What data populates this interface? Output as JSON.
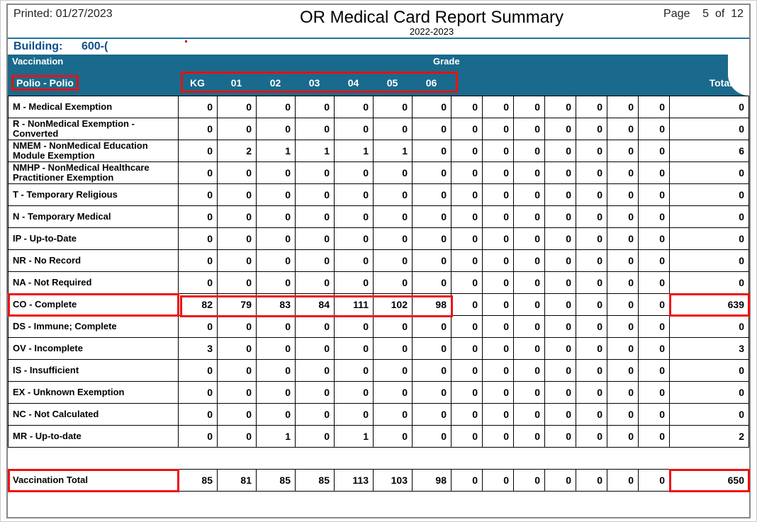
{
  "printed_label": "Printed:",
  "printed_date": "01/27/2023",
  "title": "OR Medical Card Report Summary",
  "subtitle": "2022-2023",
  "page_label": "Page",
  "page_num": "5",
  "page_of": "of",
  "page_total": "12",
  "building_label": "Building:",
  "building_value": "600-(",
  "vaccination_label": "Vaccination",
  "grade_label": "Grade",
  "vaccination_name": "Polio - Polio",
  "total_label": "Total",
  "grade_headers": [
    "KG",
    "01",
    "02",
    "03",
    "04",
    "05",
    "06",
    "",
    "",
    "",
    "",
    "",
    "",
    ""
  ],
  "rows": [
    {
      "label": "M - Medical Exemption",
      "vals": [
        0,
        0,
        0,
        0,
        0,
        0,
        0,
        0,
        0,
        0,
        0,
        0,
        0,
        0
      ],
      "total": 0
    },
    {
      "label": "R - NonMedical Exemption - Converted",
      "vals": [
        0,
        0,
        0,
        0,
        0,
        0,
        0,
        0,
        0,
        0,
        0,
        0,
        0,
        0
      ],
      "total": 0
    },
    {
      "label": "NMEM - NonMedical Education Module Exemption",
      "vals": [
        0,
        2,
        1,
        1,
        1,
        1,
        0,
        0,
        0,
        0,
        0,
        0,
        0,
        0
      ],
      "total": 6
    },
    {
      "label": "NMHP - NonMedical Healthcare Practitioner Exemption",
      "vals": [
        0,
        0,
        0,
        0,
        0,
        0,
        0,
        0,
        0,
        0,
        0,
        0,
        0,
        0
      ],
      "total": 0
    },
    {
      "label": "T - Temporary Religious",
      "vals": [
        0,
        0,
        0,
        0,
        0,
        0,
        0,
        0,
        0,
        0,
        0,
        0,
        0,
        0
      ],
      "total": 0
    },
    {
      "label": "N - Temporary Medical",
      "vals": [
        0,
        0,
        0,
        0,
        0,
        0,
        0,
        0,
        0,
        0,
        0,
        0,
        0,
        0
      ],
      "total": 0
    },
    {
      "label": "IP - Up-to-Date",
      "vals": [
        0,
        0,
        0,
        0,
        0,
        0,
        0,
        0,
        0,
        0,
        0,
        0,
        0,
        0
      ],
      "total": 0
    },
    {
      "label": "NR - No Record",
      "vals": [
        0,
        0,
        0,
        0,
        0,
        0,
        0,
        0,
        0,
        0,
        0,
        0,
        0,
        0
      ],
      "total": 0
    },
    {
      "label": "NA - Not Required",
      "vals": [
        0,
        0,
        0,
        0,
        0,
        0,
        0,
        0,
        0,
        0,
        0,
        0,
        0,
        0
      ],
      "total": 0
    },
    {
      "label": "CO - Complete",
      "vals": [
        82,
        79,
        83,
        84,
        111,
        102,
        98,
        0,
        0,
        0,
        0,
        0,
        0,
        0
      ],
      "total": 639,
      "hl": true
    },
    {
      "label": "DS - Immune; Complete",
      "vals": [
        0,
        0,
        0,
        0,
        0,
        0,
        0,
        0,
        0,
        0,
        0,
        0,
        0,
        0
      ],
      "total": 0
    },
    {
      "label": "OV - Incomplete",
      "vals": [
        3,
        0,
        0,
        0,
        0,
        0,
        0,
        0,
        0,
        0,
        0,
        0,
        0,
        0
      ],
      "total": 3
    },
    {
      "label": "IS - Insufficient",
      "vals": [
        0,
        0,
        0,
        0,
        0,
        0,
        0,
        0,
        0,
        0,
        0,
        0,
        0,
        0
      ],
      "total": 0
    },
    {
      "label": "EX - Unknown Exemption",
      "vals": [
        0,
        0,
        0,
        0,
        0,
        0,
        0,
        0,
        0,
        0,
        0,
        0,
        0,
        0
      ],
      "total": 0
    },
    {
      "label": "NC - Not Calculated",
      "vals": [
        0,
        0,
        0,
        0,
        0,
        0,
        0,
        0,
        0,
        0,
        0,
        0,
        0,
        0
      ],
      "total": 0
    },
    {
      "label": "MR - Up-to-date",
      "vals": [
        0,
        0,
        1,
        0,
        1,
        0,
        0,
        0,
        0,
        0,
        0,
        0,
        0,
        0
      ],
      "total": 2
    }
  ],
  "footer": {
    "label": "Vaccination Total",
    "vals": [
      85,
      81,
      85,
      85,
      113,
      103,
      98,
      0,
      0,
      0,
      0,
      0,
      0,
      0
    ],
    "total": 650,
    "hl": true
  },
  "colors": {
    "banner_bg": "#196a8c",
    "highlight": "#e11",
    "border": "#000",
    "building_text": "#0d4f8b"
  },
  "col_widths": {
    "label": 240,
    "num": 55,
    "narrow": 44
  }
}
